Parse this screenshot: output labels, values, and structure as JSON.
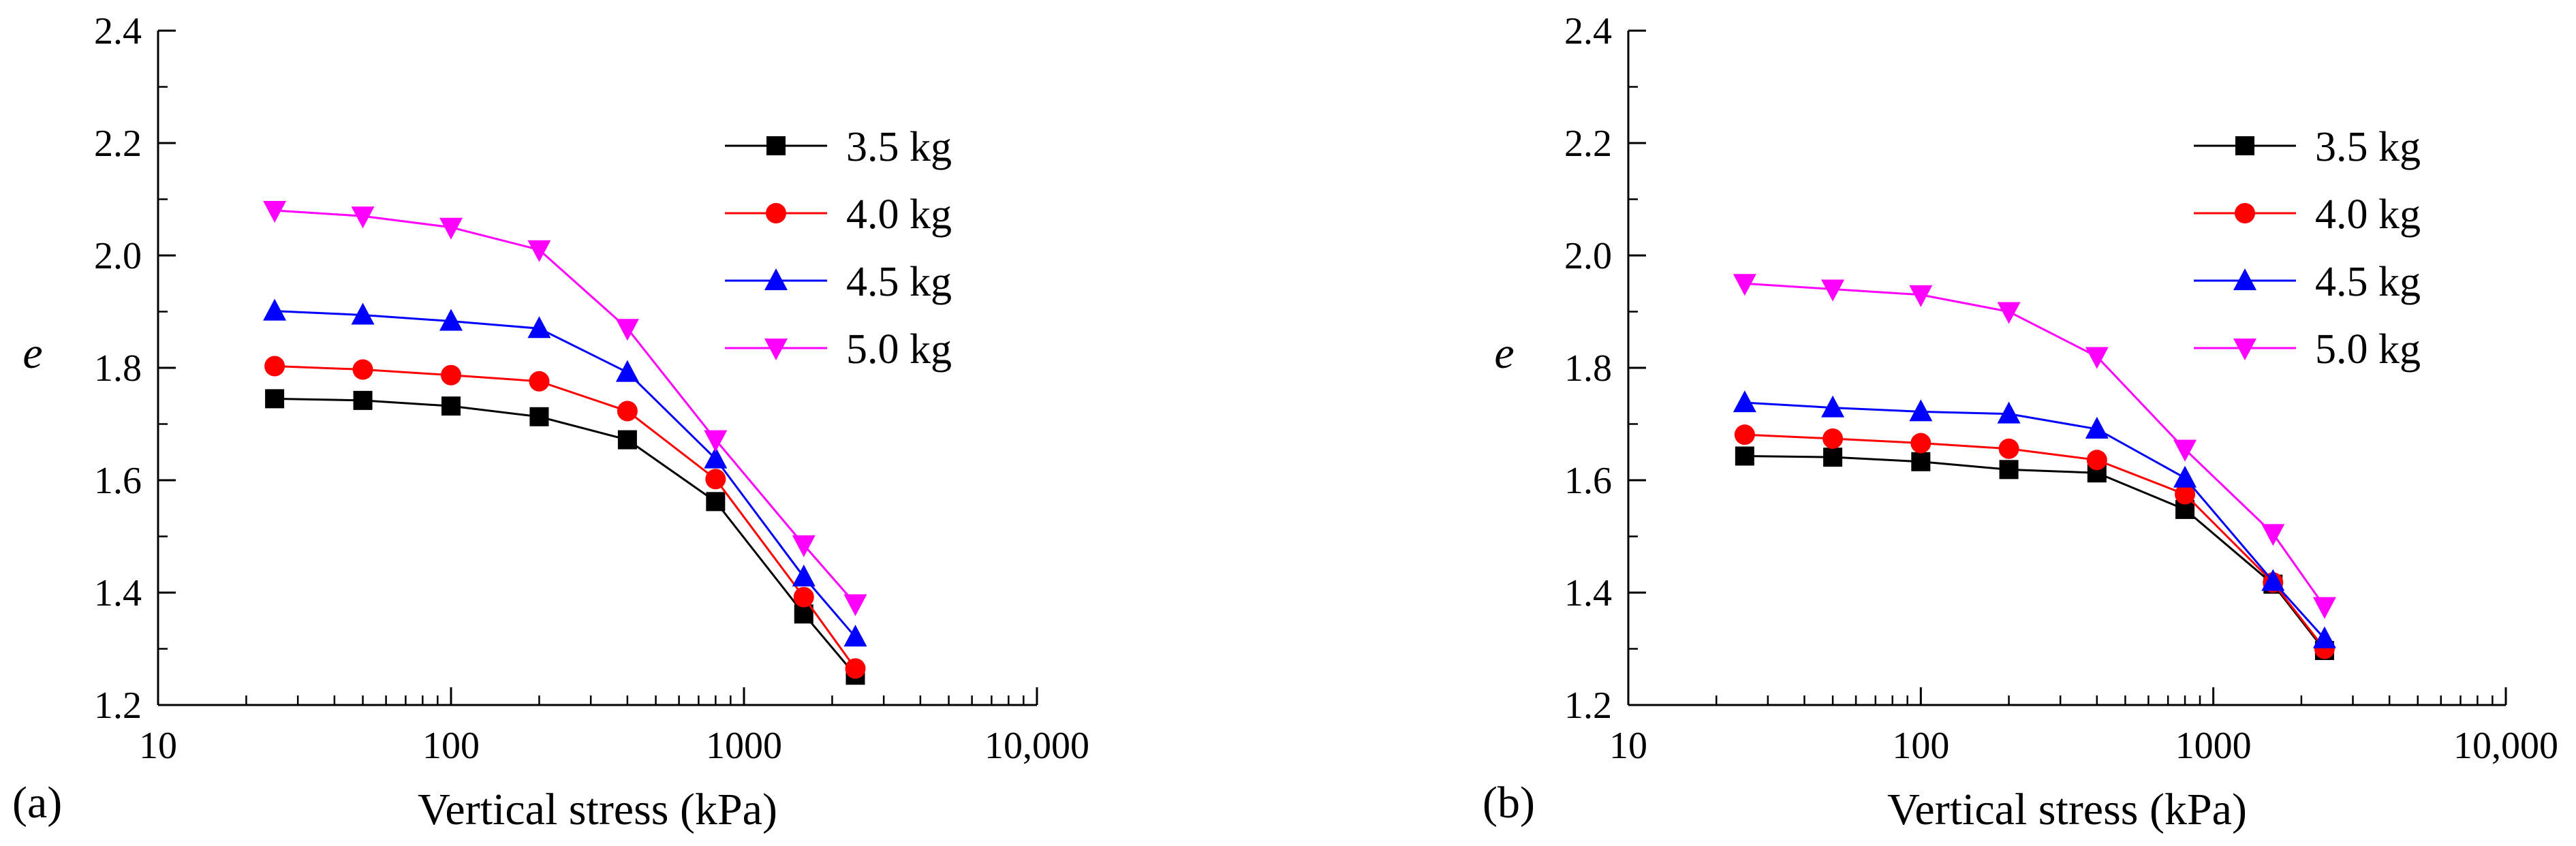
{
  "chart_data": [
    {
      "type": "line",
      "panel_label": "(a)",
      "xlabel": "Vertical stress (kPa)",
      "ylabel": "e",
      "xscale": "log",
      "xlim": [
        10,
        10000
      ],
      "ylim": [
        1.2,
        2.4
      ],
      "x_ticks": [
        10,
        100,
        1000,
        10000
      ],
      "x_tick_labels": [
        "10",
        "100",
        "1000",
        "10,000"
      ],
      "y_ticks": [
        1.2,
        1.4,
        1.6,
        1.8,
        2.0,
        2.2,
        2.4
      ],
      "y_tick_labels": [
        "1.2",
        "1.4",
        "1.6",
        "1.8",
        "2.0",
        "2.2",
        "2.4"
      ],
      "grid": false,
      "legend_position": "top-right",
      "x": [
        25,
        50,
        100,
        200,
        400,
        800,
        1600,
        2400
      ],
      "series": [
        {
          "name": "3.5 kg",
          "color": "#000000",
          "marker": "square",
          "values": [
            1.745,
            1.742,
            1.732,
            1.713,
            1.672,
            1.562,
            1.362,
            1.253
          ]
        },
        {
          "name": "4.0 kg",
          "color": "#ff0000",
          "marker": "circle",
          "values": [
            1.803,
            1.797,
            1.787,
            1.776,
            1.723,
            1.602,
            1.392,
            1.265
          ]
        },
        {
          "name": "4.5 kg",
          "color": "#0000ff",
          "marker": "triangle-up",
          "values": [
            1.901,
            1.894,
            1.883,
            1.87,
            1.792,
            1.638,
            1.428,
            1.321
          ]
        },
        {
          "name": "5.0 kg",
          "color": "#ff00ff",
          "marker": "triangle-down",
          "values": [
            2.08,
            2.07,
            2.05,
            2.01,
            1.87,
            1.672,
            1.485,
            1.38
          ]
        }
      ]
    },
    {
      "type": "line",
      "panel_label": "(b)",
      "xlabel": "Vertical stress (kPa)",
      "ylabel": "e",
      "xscale": "log",
      "xlim": [
        10,
        10000
      ],
      "ylim": [
        1.2,
        2.4
      ],
      "x_ticks": [
        10,
        100,
        1000,
        10000
      ],
      "x_tick_labels": [
        "10",
        "100",
        "1000",
        "10,000"
      ],
      "y_ticks": [
        1.2,
        1.4,
        1.6,
        1.8,
        2.0,
        2.2,
        2.4
      ],
      "y_tick_labels": [
        "1.2",
        "1.4",
        "1.6",
        "1.8",
        "2.0",
        "2.2",
        "2.4"
      ],
      "grid": false,
      "legend_position": "top-right",
      "x": [
        25,
        50,
        100,
        200,
        400,
        800,
        1600,
        2400
      ],
      "series": [
        {
          "name": "3.5 kg",
          "color": "#000000",
          "marker": "square",
          "values": [
            1.643,
            1.641,
            1.633,
            1.619,
            1.613,
            1.548,
            1.415,
            1.297
          ]
        },
        {
          "name": "4.0 kg",
          "color": "#ff0000",
          "marker": "circle",
          "values": [
            1.681,
            1.674,
            1.666,
            1.656,
            1.636,
            1.575,
            1.418,
            1.3
          ]
        },
        {
          "name": "4.5 kg",
          "color": "#0000ff",
          "marker": "triangle-up",
          "values": [
            1.738,
            1.729,
            1.722,
            1.718,
            1.691,
            1.604,
            1.42,
            1.318
          ]
        },
        {
          "name": "5.0 kg",
          "color": "#ff00ff",
          "marker": "triangle-down",
          "values": [
            1.95,
            1.94,
            1.93,
            1.9,
            1.82,
            1.655,
            1.505,
            1.375
          ]
        }
      ]
    }
  ]
}
